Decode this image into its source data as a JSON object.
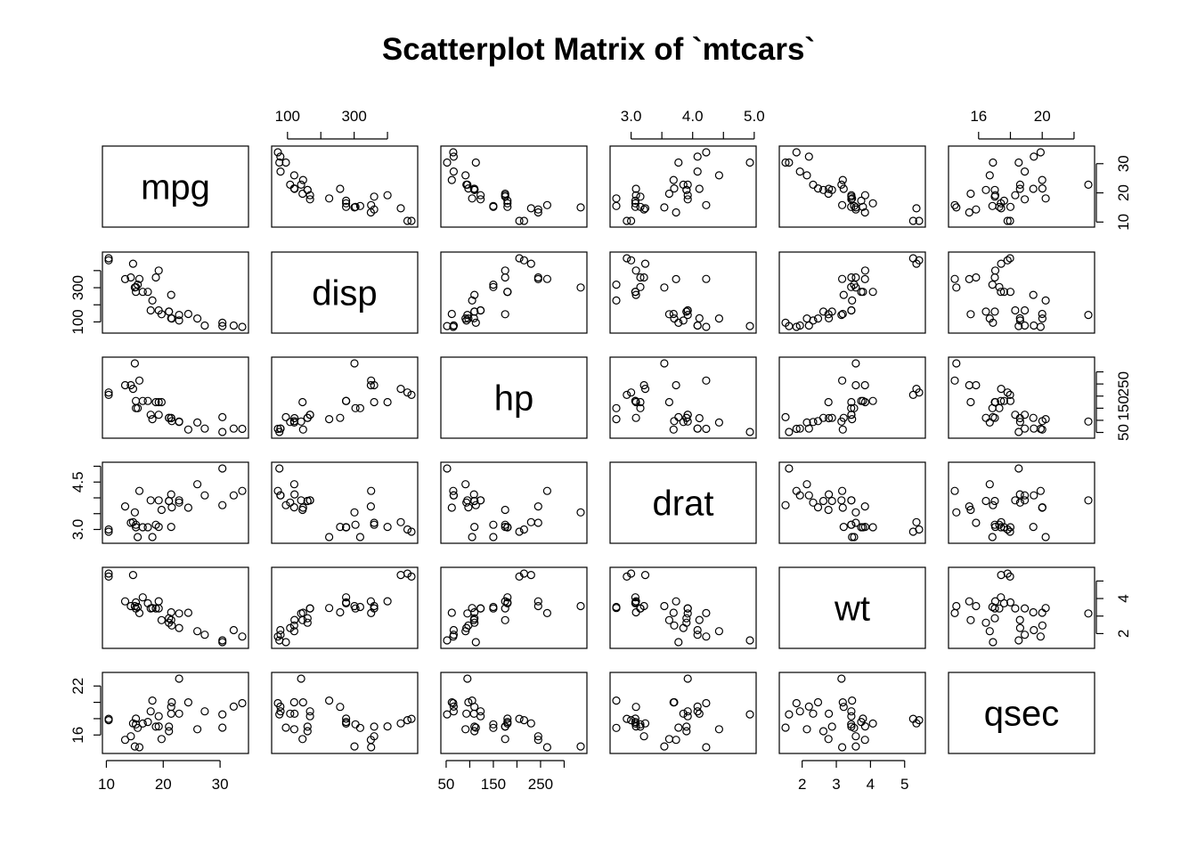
{
  "chart_data": {
    "type": "scatter",
    "title": "Scatterplot Matrix of `mtcars`",
    "variables": [
      "mpg",
      "disp",
      "hp",
      "drat",
      "wt",
      "qsec"
    ],
    "axes": {
      "mpg": {
        "ticks": [
          10,
          20,
          30
        ],
        "tick_labels": [
          "10",
          "20",
          "30"
        ],
        "side": "bottom"
      },
      "disp": {
        "ticks": [
          100,
          200,
          300,
          400
        ],
        "tick_labels": [
          "100",
          "",
          "300",
          ""
        ],
        "side": "top-left"
      },
      "hp": {
        "ticks": [
          50,
          100,
          150,
          200,
          250,
          300
        ],
        "tick_labels": [
          "50",
          "",
          "150",
          "",
          "250",
          ""
        ],
        "side": "bottom-right"
      },
      "drat": {
        "ticks": [
          3.0,
          3.5,
          4.0,
          4.5,
          5.0
        ],
        "tick_labels": [
          "3.0",
          "",
          "4.0",
          "",
          "5.0"
        ],
        "ytick_labels": [
          "3.0",
          "",
          "",
          "4.5",
          ""
        ],
        "side": "top-left"
      },
      "wt": {
        "ticks": [
          2,
          3,
          4,
          5
        ],
        "tick_labels": [
          "2",
          "3",
          "4",
          "5"
        ],
        "ytick_labels": [
          "2",
          "",
          "4",
          ""
        ],
        "side": "bottom-right"
      },
      "qsec": {
        "ticks": [
          16,
          18,
          20,
          22
        ],
        "tick_labels": [
          "16",
          "",
          "20",
          ""
        ],
        "ytick_labels": [
          "16",
          "",
          "",
          "22"
        ],
        "side": "top-left"
      }
    },
    "cars": [
      {
        "mpg": 21.0,
        "disp": 160.0,
        "hp": 110,
        "drat": 3.9,
        "wt": 2.62,
        "qsec": 16.46
      },
      {
        "mpg": 21.0,
        "disp": 160.0,
        "hp": 110,
        "drat": 3.9,
        "wt": 2.875,
        "qsec": 17.02
      },
      {
        "mpg": 22.8,
        "disp": 108.0,
        "hp": 93,
        "drat": 3.85,
        "wt": 2.32,
        "qsec": 18.61
      },
      {
        "mpg": 21.4,
        "disp": 258.0,
        "hp": 110,
        "drat": 3.08,
        "wt": 3.215,
        "qsec": 19.44
      },
      {
        "mpg": 18.7,
        "disp": 360.0,
        "hp": 175,
        "drat": 3.15,
        "wt": 3.44,
        "qsec": 17.02
      },
      {
        "mpg": 18.1,
        "disp": 225.0,
        "hp": 105,
        "drat": 2.76,
        "wt": 3.46,
        "qsec": 20.22
      },
      {
        "mpg": 14.3,
        "disp": 360.0,
        "hp": 245,
        "drat": 3.21,
        "wt": 3.57,
        "qsec": 15.84
      },
      {
        "mpg": 24.4,
        "disp": 146.7,
        "hp": 62,
        "drat": 3.69,
        "wt": 3.19,
        "qsec": 20.0
      },
      {
        "mpg": 22.8,
        "disp": 140.8,
        "hp": 95,
        "drat": 3.92,
        "wt": 3.15,
        "qsec": 22.9
      },
      {
        "mpg": 19.2,
        "disp": 167.6,
        "hp": 123,
        "drat": 3.92,
        "wt": 3.44,
        "qsec": 18.3
      },
      {
        "mpg": 17.8,
        "disp": 167.6,
        "hp": 123,
        "drat": 3.92,
        "wt": 3.44,
        "qsec": 18.9
      },
      {
        "mpg": 16.4,
        "disp": 275.8,
        "hp": 180,
        "drat": 3.07,
        "wt": 4.07,
        "qsec": 17.4
      },
      {
        "mpg": 17.3,
        "disp": 275.8,
        "hp": 180,
        "drat": 3.07,
        "wt": 3.73,
        "qsec": 17.6
      },
      {
        "mpg": 15.2,
        "disp": 275.8,
        "hp": 180,
        "drat": 3.07,
        "wt": 3.78,
        "qsec": 18.0
      },
      {
        "mpg": 10.4,
        "disp": 472.0,
        "hp": 205,
        "drat": 2.93,
        "wt": 5.25,
        "qsec": 17.98
      },
      {
        "mpg": 10.4,
        "disp": 460.0,
        "hp": 215,
        "drat": 3.0,
        "wt": 5.424,
        "qsec": 17.82
      },
      {
        "mpg": 14.7,
        "disp": 440.0,
        "hp": 230,
        "drat": 3.23,
        "wt": 5.345,
        "qsec": 17.42
      },
      {
        "mpg": 32.4,
        "disp": 78.7,
        "hp": 66,
        "drat": 4.08,
        "wt": 2.2,
        "qsec": 19.47
      },
      {
        "mpg": 30.4,
        "disp": 75.7,
        "hp": 52,
        "drat": 4.93,
        "wt": 1.615,
        "qsec": 18.52
      },
      {
        "mpg": 33.9,
        "disp": 71.1,
        "hp": 65,
        "drat": 4.22,
        "wt": 1.835,
        "qsec": 19.9
      },
      {
        "mpg": 21.5,
        "disp": 120.1,
        "hp": 97,
        "drat": 3.7,
        "wt": 2.465,
        "qsec": 20.01
      },
      {
        "mpg": 15.5,
        "disp": 318.0,
        "hp": 150,
        "drat": 2.76,
        "wt": 3.52,
        "qsec": 16.87
      },
      {
        "mpg": 15.2,
        "disp": 304.0,
        "hp": 150,
        "drat": 3.15,
        "wt": 3.435,
        "qsec": 17.3
      },
      {
        "mpg": 13.3,
        "disp": 350.0,
        "hp": 245,
        "drat": 3.73,
        "wt": 3.84,
        "qsec": 15.41
      },
      {
        "mpg": 19.2,
        "disp": 400.0,
        "hp": 175,
        "drat": 3.08,
        "wt": 3.845,
        "qsec": 17.05
      },
      {
        "mpg": 27.3,
        "disp": 79.0,
        "hp": 66,
        "drat": 4.08,
        "wt": 1.935,
        "qsec": 18.9
      },
      {
        "mpg": 26.0,
        "disp": 120.3,
        "hp": 91,
        "drat": 4.43,
        "wt": 2.14,
        "qsec": 16.7
      },
      {
        "mpg": 30.4,
        "disp": 95.1,
        "hp": 113,
        "drat": 3.77,
        "wt": 1.513,
        "qsec": 16.9
      },
      {
        "mpg": 15.8,
        "disp": 351.0,
        "hp": 264,
        "drat": 4.22,
        "wt": 3.17,
        "qsec": 14.5
      },
      {
        "mpg": 19.7,
        "disp": 145.0,
        "hp": 175,
        "drat": 3.62,
        "wt": 2.77,
        "qsec": 15.5
      },
      {
        "mpg": 15.0,
        "disp": 301.0,
        "hp": 335,
        "drat": 3.54,
        "wt": 3.57,
        "qsec": 14.6
      },
      {
        "mpg": 21.4,
        "disp": 121.0,
        "hp": 109,
        "drat": 4.11,
        "wt": 2.78,
        "qsec": 18.6
      }
    ],
    "grid": false,
    "marker": "open-circle",
    "colors": {
      "points": "#000000",
      "frame": "#000000",
      "background": "#ffffff"
    }
  }
}
